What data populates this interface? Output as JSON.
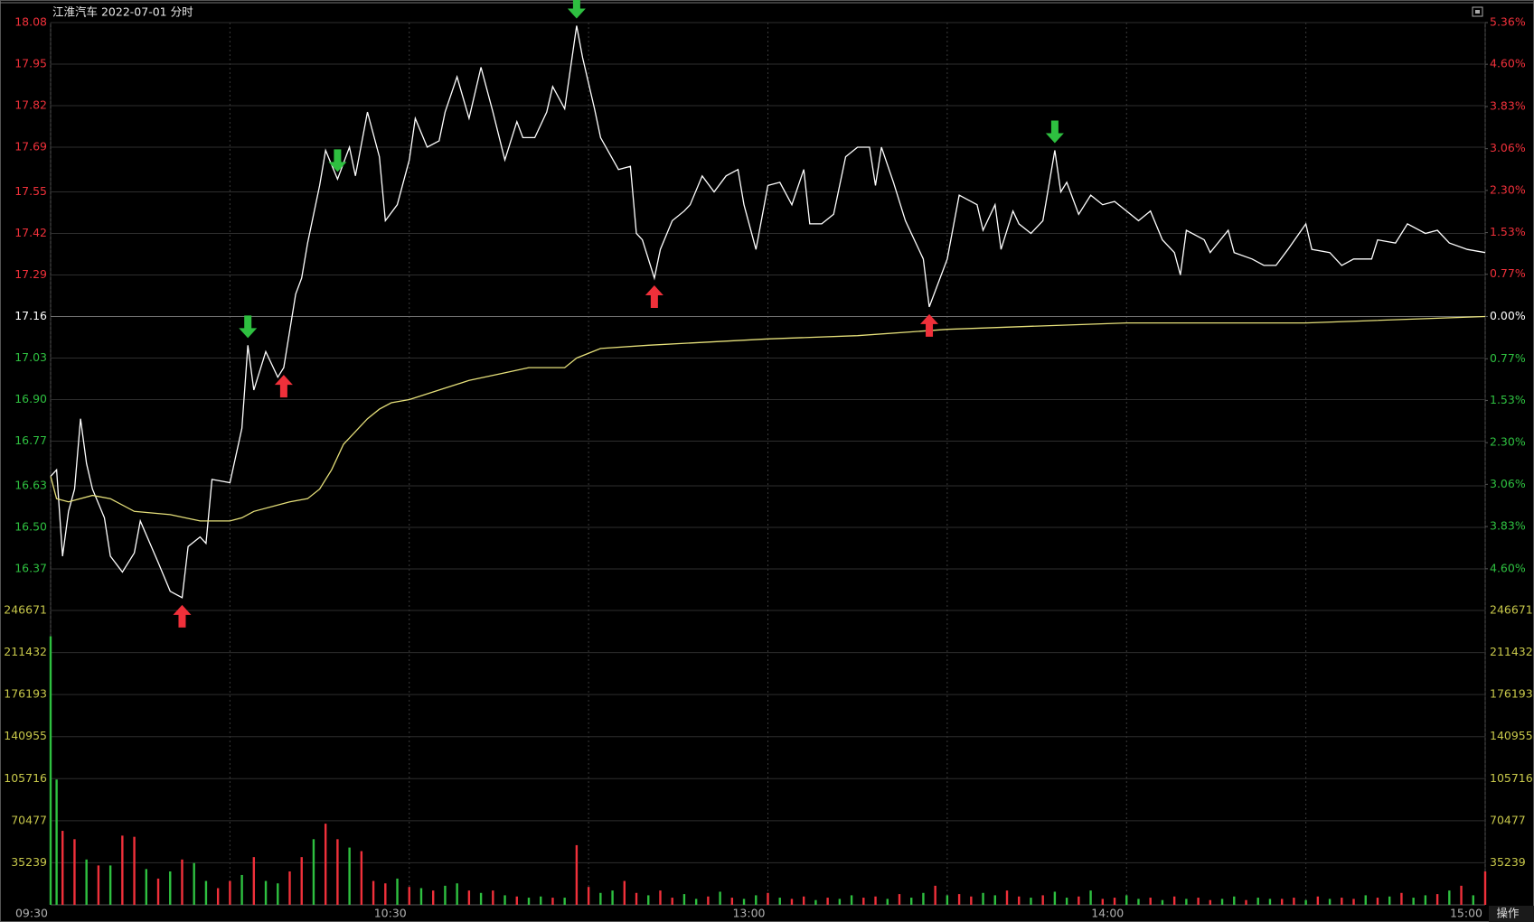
{
  "chart_data": [
    {
      "type": "line",
      "title": "江淮汽车  2022-07-01 分时",
      "button_label": "操作",
      "xlim": [
        0,
        240
      ],
      "ylim": [
        16.24,
        18.08
      ],
      "yticks": [
        18.08,
        17.95,
        17.82,
        17.69,
        17.55,
        17.42,
        17.29,
        17.16,
        17.03,
        {
          "value": 16.9,
          "label": "16.90"
        },
        16.77,
        16.63,
        {
          "value": 16.5,
          "label": "16.50"
        },
        16.37
      ],
      "y2lim": [
        -5.36,
        5.36
      ],
      "y2ticks": [
        {
          "value": 5.36,
          "label": "5.36%"
        },
        {
          "value": 4.6,
          "label": "4.60%"
        },
        {
          "value": 3.83,
          "label": "3.83%"
        },
        {
          "value": 3.06,
          "label": "3.06%"
        },
        {
          "value": 2.3,
          "label": "2.30%"
        },
        {
          "value": 1.53,
          "label": "1.53%"
        },
        {
          "value": 0.77,
          "label": "0.77%"
        },
        {
          "value": 0,
          "label": "0.00%"
        },
        {
          "value": -0.77,
          "label": "0.77%"
        },
        {
          "value": -1.53,
          "label": "1.53%"
        },
        {
          "value": -2.3,
          "label": "2.30%"
        },
        {
          "value": -3.06,
          "label": "3.06%"
        },
        {
          "value": -3.83,
          "label": "3.83%"
        },
        {
          "value": -4.6,
          "label": "4.60%"
        }
      ],
      "up_color": "#f0303a",
      "down_color": "#2ec040",
      "flat_color": "#ffffff",
      "grid": true,
      "minor_xticks": [
        30,
        90,
        150,
        210
      ],
      "series": [
        {
          "color": "#ffffff",
          "x": [
            0,
            1,
            2,
            3,
            4,
            5,
            6,
            7,
            9,
            10,
            12,
            14,
            15,
            18,
            20,
            22,
            23,
            25,
            26,
            27,
            30,
            32,
            33,
            34,
            36,
            38,
            39,
            41,
            42,
            43,
            45,
            46,
            48,
            50,
            51,
            53,
            55,
            56,
            58,
            60,
            61,
            63,
            65,
            66,
            68,
            70,
            72,
            74,
            76,
            78,
            79,
            81,
            83,
            84,
            86,
            88,
            89,
            91,
            92,
            95,
            97,
            98,
            99,
            101,
            102,
            104,
            106,
            107,
            109,
            111,
            113,
            115,
            116,
            118,
            120,
            122,
            124,
            126,
            127,
            129,
            131,
            133,
            135,
            137,
            138,
            139,
            141,
            143,
            146,
            147,
            150,
            152,
            155,
            156,
            158,
            159,
            161,
            162,
            164,
            166,
            168,
            169,
            170,
            172,
            174,
            176,
            178,
            180,
            182,
            184,
            186,
            188,
            189,
            190,
            193,
            194,
            197,
            198,
            201,
            203,
            205,
            207,
            210,
            211,
            214,
            216,
            218,
            221,
            222,
            225,
            227,
            230,
            232,
            234,
            237,
            240
          ],
          "values": [
            16.66,
            16.68,
            16.41,
            16.55,
            16.62,
            16.84,
            16.7,
            16.62,
            16.53,
            16.41,
            16.36,
            16.42,
            16.52,
            16.39,
            16.3,
            16.28,
            16.44,
            16.47,
            16.45,
            16.65,
            16.64,
            16.81,
            17.07,
            16.93,
            17.05,
            16.97,
            17.0,
            17.23,
            17.28,
            17.39,
            17.57,
            17.68,
            17.59,
            17.69,
            17.6,
            17.8,
            17.66,
            17.46,
            17.51,
            17.65,
            17.78,
            17.69,
            17.71,
            17.8,
            17.91,
            17.78,
            17.94,
            17.8,
            17.65,
            17.77,
            17.72,
            17.72,
            17.8,
            17.88,
            17.81,
            18.07,
            17.97,
            17.81,
            17.72,
            17.62,
            17.63,
            17.42,
            17.4,
            17.28,
            17.37,
            17.46,
            17.49,
            17.51,
            17.6,
            17.55,
            17.6,
            17.62,
            17.51,
            17.37,
            17.57,
            17.58,
            17.51,
            17.62,
            17.45,
            17.45,
            17.48,
            17.66,
            17.69,
            17.69,
            17.57,
            17.69,
            17.58,
            17.46,
            17.34,
            17.19,
            17.34,
            17.54,
            17.51,
            17.43,
            17.51,
            17.37,
            17.49,
            17.45,
            17.42,
            17.46,
            17.68,
            17.55,
            17.58,
            17.48,
            17.54,
            17.51,
            17.52,
            17.49,
            17.46,
            17.49,
            17.4,
            17.36,
            17.29,
            17.43,
            17.4,
            17.36,
            17.43,
            17.36,
            17.34,
            17.32,
            17.32,
            17.37,
            17.45,
            17.37,
            17.36,
            17.32,
            17.34,
            17.34,
            17.4,
            17.39,
            17.45,
            17.42,
            17.43,
            17.39,
            17.37,
            17.36
          ]
        },
        {
          "color": "#e6e07a",
          "x": [
            0,
            1,
            3,
            7,
            10,
            14,
            20,
            25,
            30,
            32,
            34,
            40,
            43,
            45,
            47,
            49,
            53,
            55,
            57,
            60,
            65,
            70,
            75,
            80,
            86,
            88,
            92,
            100,
            110,
            120,
            135,
            150,
            165,
            180,
            210,
            240
          ],
          "values": [
            16.66,
            16.59,
            16.58,
            16.6,
            16.59,
            16.55,
            16.54,
            16.52,
            16.52,
            16.53,
            16.55,
            16.58,
            16.59,
            16.62,
            16.68,
            16.76,
            16.84,
            16.87,
            16.89,
            16.9,
            16.93,
            16.96,
            16.98,
            17.0,
            17.0,
            17.03,
            17.06,
            17.07,
            17.08,
            17.09,
            17.1,
            17.12,
            17.13,
            17.14,
            17.14,
            17.16
          ]
        }
      ],
      "up_arrows": [
        22,
        39,
        101,
        147
      ],
      "down_arrows": [
        33,
        48,
        88,
        168
      ]
    },
    {
      "type": "bar",
      "xlim": [
        0,
        240
      ],
      "ylim": [
        0,
        246671
      ],
      "yticks": [
        246671,
        211432,
        176193,
        140955,
        105716,
        70477,
        35239
      ],
      "tick_color": "#c8c84a",
      "xticks": [
        {
          "value": 0,
          "label": "09:30"
        },
        {
          "value": 60,
          "label": "10:30"
        },
        {
          "value": 120,
          "label": "13:00"
        },
        {
          "value": 180,
          "label": "14:00"
        },
        {
          "value": 240,
          "label": "15:00"
        }
      ],
      "grid": true,
      "x": [
        0,
        1,
        2,
        4,
        6,
        8,
        10,
        12,
        14,
        16,
        18,
        20,
        22,
        24,
        26,
        28,
        30,
        32,
        34,
        36,
        38,
        40,
        42,
        44,
        46,
        48,
        50,
        52,
        54,
        56,
        58,
        60,
        62,
        64,
        66,
        68,
        70,
        72,
        74,
        76,
        78,
        80,
        82,
        84,
        86,
        88,
        90,
        92,
        94,
        96,
        98,
        100,
        102,
        104,
        106,
        108,
        110,
        112,
        114,
        116,
        118,
        120,
        122,
        124,
        126,
        128,
        130,
        132,
        134,
        136,
        138,
        140,
        142,
        144,
        146,
        148,
        150,
        152,
        154,
        156,
        158,
        160,
        162,
        164,
        166,
        168,
        170,
        172,
        174,
        176,
        178,
        180,
        182,
        184,
        186,
        188,
        190,
        192,
        194,
        196,
        198,
        200,
        202,
        204,
        206,
        208,
        210,
        212,
        214,
        216,
        218,
        220,
        222,
        224,
        226,
        228,
        230,
        232,
        234,
        236,
        238,
        240
      ],
      "values": [
        225000,
        105000,
        62000,
        55000,
        38000,
        33000,
        33000,
        58000,
        57000,
        30000,
        22000,
        28000,
        38000,
        35000,
        20000,
        14000,
        20000,
        25000,
        40000,
        20000,
        18000,
        28000,
        40000,
        55000,
        68000,
        55000,
        48000,
        45000,
        20000,
        18000,
        22000,
        15000,
        14000,
        12000,
        16000,
        18000,
        12000,
        10000,
        12000,
        8000,
        7000,
        6000,
        7000,
        6000,
        6000,
        50000,
        15000,
        10000,
        12000,
        20000,
        10000,
        8000,
        12000,
        6000,
        9000,
        5000,
        7000,
        11000,
        6000,
        5000,
        8000,
        10000,
        6000,
        5000,
        7000,
        4000,
        6000,
        5000,
        8000,
        6000,
        7000,
        5000,
        9000,
        6000,
        10000,
        16000,
        8000,
        9000,
        7000,
        10000,
        8000,
        12000,
        7000,
        6000,
        8000,
        11000,
        6000,
        7000,
        12000,
        5000,
        6000,
        8000,
        5000,
        6000,
        4000,
        7000,
        5000,
        6000,
        4000,
        5000,
        7000,
        4000,
        6000,
        5000,
        5000,
        6000,
        4000,
        7000,
        5000,
        6000,
        5000,
        8000,
        6000,
        7000,
        10000,
        6000,
        8000,
        9000,
        12000,
        16000,
        8000,
        28000
      ],
      "colors": [
        "#2ec040",
        "#2ec040",
        "#f0303a",
        "#f0303a",
        "#2ec040",
        "#f0303a",
        "#2ec040",
        "#f0303a",
        "#f0303a",
        "#2ec040",
        "#f0303a",
        "#2ec040",
        "#f0303a",
        "#2ec040",
        "#2ec040",
        "#f0303a",
        "#f0303a",
        "#2ec040",
        "#f0303a",
        "#2ec040",
        "#2ec040",
        "#f0303a",
        "#f0303a",
        "#2ec040",
        "#f0303a",
        "#f0303a",
        "#2ec040",
        "#f0303a",
        "#f0303a",
        "#f0303a",
        "#2ec040",
        "#f0303a",
        "#2ec040",
        "#f0303a",
        "#2ec040",
        "#2ec040",
        "#f0303a",
        "#2ec040",
        "#f0303a",
        "#2ec040",
        "#f0303a",
        "#2ec040",
        "#2ec040",
        "#f0303a",
        "#2ec040",
        "#f0303a",
        "#f0303a",
        "#2ec040",
        "#2ec040",
        "#f0303a",
        "#f0303a",
        "#2ec040",
        "#f0303a",
        "#f0303a",
        "#2ec040",
        "#2ec040",
        "#f0303a",
        "#2ec040",
        "#f0303a",
        "#2ec040",
        "#2ec040",
        "#f0303a",
        "#2ec040",
        "#f0303a",
        "#f0303a",
        "#2ec040",
        "#f0303a",
        "#2ec040",
        "#2ec040",
        "#f0303a",
        "#f0303a",
        "#2ec040",
        "#f0303a",
        "#2ec040",
        "#2ec040",
        "#f0303a",
        "#2ec040",
        "#f0303a",
        "#f0303a",
        "#2ec040",
        "#2ec040",
        "#f0303a",
        "#f0303a",
        "#2ec040",
        "#f0303a",
        "#2ec040",
        "#2ec040",
        "#f0303a",
        "#2ec040",
        "#f0303a",
        "#f0303a",
        "#2ec040",
        "#2ec040",
        "#f0303a",
        "#2ec040",
        "#f0303a",
        "#2ec040",
        "#f0303a",
        "#f0303a",
        "#2ec040",
        "#2ec040",
        "#f0303a",
        "#2ec040",
        "#2ec040",
        "#f0303a",
        "#f0303a",
        "#2ec040",
        "#f0303a",
        "#2ec040",
        "#f0303a",
        "#f0303a",
        "#2ec040",
        "#f0303a",
        "#2ec040",
        "#f0303a",
        "#2ec040",
        "#2ec040",
        "#f0303a",
        "#2ec040",
        "#f0303a",
        "#2ec040",
        "#f0303a"
      ]
    }
  ]
}
